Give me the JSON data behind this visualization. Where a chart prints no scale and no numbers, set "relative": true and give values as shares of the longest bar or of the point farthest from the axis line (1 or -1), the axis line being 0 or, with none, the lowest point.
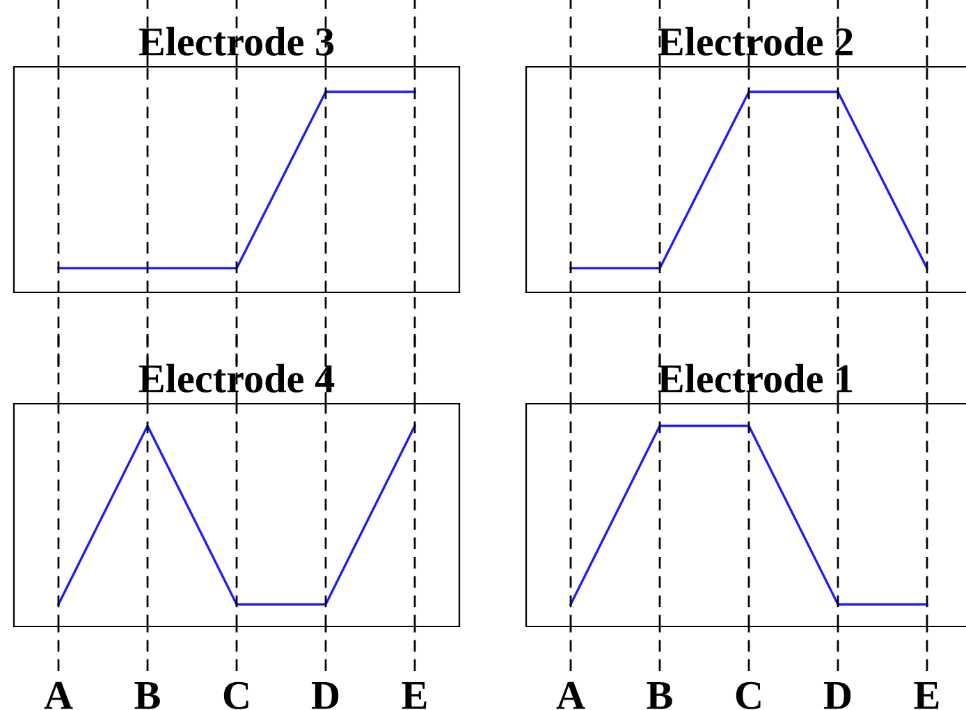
{
  "chart_data": [
    {
      "type": "line",
      "title": "Electrode 3",
      "categories": [
        null,
        null,
        null,
        null,
        null
      ],
      "values": [
        0.12,
        0.12,
        0.12,
        1,
        1
      ],
      "color": "#1a1aff",
      "relative": true,
      "grid": "x",
      "tick_labels": false
    },
    {
      "type": "line",
      "title": "Electrode 2",
      "categories": [
        null,
        null,
        null,
        null,
        null
      ],
      "values": [
        0.12,
        0.12,
        1,
        1,
        0.12
      ],
      "color": "#1a1aff",
      "relative": true,
      "grid": "x",
      "tick_labels": false
    },
    {
      "type": "line",
      "title": "Electrode 4",
      "categories": [
        "A",
        "B",
        "C",
        "D",
        "E"
      ],
      "values": [
        0.11,
        1,
        0.11,
        0.11,
        1
      ],
      "color": "#1a1aff",
      "relative": true,
      "grid": "x",
      "tick_labels": "x"
    },
    {
      "type": "line",
      "title": "Electrode 1",
      "categories": [
        "A",
        "B",
        "C",
        "D",
        "E"
      ],
      "values": [
        0.11,
        1,
        1,
        0.11,
        0.11
      ],
      "color": "#1a1aff",
      "relative": true,
      "grid": "x",
      "tick_labels": "x"
    }
  ]
}
